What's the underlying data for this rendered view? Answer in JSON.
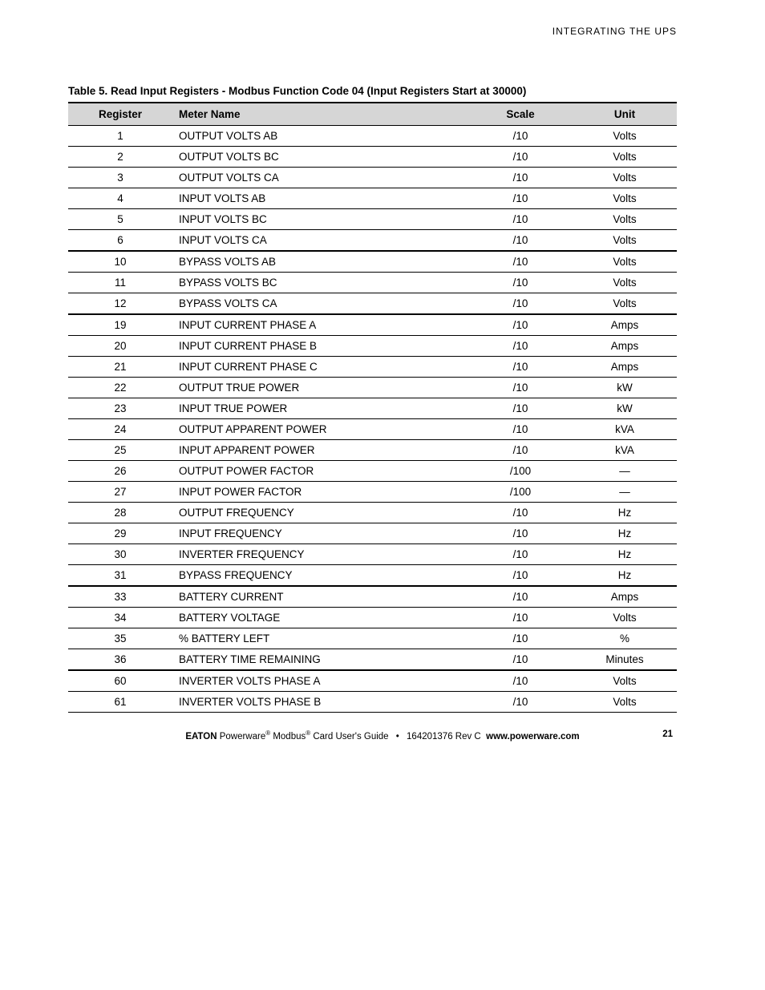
{
  "header": {
    "running_head": "INTEGRATING THE UPS"
  },
  "table": {
    "title": "Table 5. Read Input Registers - Modbus Function Code 04 (Input Registers Start at 30000)",
    "columns": {
      "register": "Register",
      "meter_name": "Meter Name",
      "scale": "Scale",
      "unit": "Unit"
    },
    "header_bg": "#d6d6d6",
    "border_color": "#000000",
    "rows": [
      {
        "register": "1",
        "meter_name": "OUTPUT VOLTS AB",
        "scale": "/10",
        "unit": "Volts",
        "group_end": false
      },
      {
        "register": "2",
        "meter_name": "OUTPUT VOLTS BC",
        "scale": "/10",
        "unit": "Volts",
        "group_end": false
      },
      {
        "register": "3",
        "meter_name": "OUTPUT VOLTS CA",
        "scale": "/10",
        "unit": "Volts",
        "group_end": false
      },
      {
        "register": "4",
        "meter_name": "INPUT VOLTS AB",
        "scale": "/10",
        "unit": "Volts",
        "group_end": false
      },
      {
        "register": "5",
        "meter_name": "INPUT VOLTS BC",
        "scale": "/10",
        "unit": "Volts",
        "group_end": false
      },
      {
        "register": "6",
        "meter_name": "INPUT VOLTS CA",
        "scale": "/10",
        "unit": "Volts",
        "group_end": true
      },
      {
        "register": "10",
        "meter_name": "BYPASS VOLTS AB",
        "scale": "/10",
        "unit": "Volts",
        "group_end": false
      },
      {
        "register": "11",
        "meter_name": "BYPASS VOLTS BC",
        "scale": "/10",
        "unit": "Volts",
        "group_end": false
      },
      {
        "register": "12",
        "meter_name": "BYPASS VOLTS CA",
        "scale": "/10",
        "unit": "Volts",
        "group_end": true
      },
      {
        "register": "19",
        "meter_name": "INPUT CURRENT PHASE A",
        "scale": "/10",
        "unit": "Amps",
        "group_end": false
      },
      {
        "register": "20",
        "meter_name": "INPUT CURRENT PHASE B",
        "scale": "/10",
        "unit": "Amps",
        "group_end": false
      },
      {
        "register": "21",
        "meter_name": "INPUT CURRENT PHASE C",
        "scale": "/10",
        "unit": "Amps",
        "group_end": false
      },
      {
        "register": "22",
        "meter_name": "OUTPUT TRUE POWER",
        "scale": "/10",
        "unit": "kW",
        "group_end": false
      },
      {
        "register": "23",
        "meter_name": "INPUT TRUE POWER",
        "scale": "/10",
        "unit": "kW",
        "group_end": false
      },
      {
        "register": "24",
        "meter_name": "OUTPUT APPARENT POWER",
        "scale": "/10",
        "unit": "kVA",
        "group_end": false
      },
      {
        "register": "25",
        "meter_name": "INPUT APPARENT POWER",
        "scale": "/10",
        "unit": "kVA",
        "group_end": false
      },
      {
        "register": "26",
        "meter_name": "OUTPUT POWER FACTOR",
        "scale": "/100",
        "unit": "—",
        "group_end": false
      },
      {
        "register": "27",
        "meter_name": "INPUT POWER FACTOR",
        "scale": "/100",
        "unit": "—",
        "group_end": false
      },
      {
        "register": "28",
        "meter_name": "OUTPUT FREQUENCY",
        "scale": "/10",
        "unit": "Hz",
        "group_end": false
      },
      {
        "register": "29",
        "meter_name": "INPUT FREQUENCY",
        "scale": "/10",
        "unit": "Hz",
        "group_end": false
      },
      {
        "register": "30",
        "meter_name": "INVERTER FREQUENCY",
        "scale": "/10",
        "unit": "Hz",
        "group_end": false
      },
      {
        "register": "31",
        "meter_name": "BYPASS FREQUENCY",
        "scale": "/10",
        "unit": "Hz",
        "group_end": true
      },
      {
        "register": "33",
        "meter_name": "BATTERY CURRENT",
        "scale": "/10",
        "unit": "Amps",
        "group_end": false
      },
      {
        "register": "34",
        "meter_name": "BATTERY VOLTAGE",
        "scale": "/10",
        "unit": "Volts",
        "group_end": false
      },
      {
        "register": "35",
        "meter_name": "% BATTERY LEFT",
        "scale": "/10",
        "unit": "%",
        "group_end": false
      },
      {
        "register": "36",
        "meter_name": "BATTERY TIME REMAINING",
        "scale": "/10",
        "unit": "Minutes",
        "group_end": true
      },
      {
        "register": "60",
        "meter_name": "INVERTER VOLTS PHASE A",
        "scale": "/10",
        "unit": "Volts",
        "group_end": false
      },
      {
        "register": "61",
        "meter_name": "INVERTER VOLTS PHASE B",
        "scale": "/10",
        "unit": "Volts",
        "group_end": false
      }
    ]
  },
  "footer": {
    "brand": "EATON",
    "product": " Powerware",
    "reg1": "®",
    "middle": " Modbus",
    "reg2": "®",
    "suffix": " Card User's Guide",
    "docnum": "164201376 Rev C",
    "url": "www.powerware.com",
    "page": "21"
  }
}
